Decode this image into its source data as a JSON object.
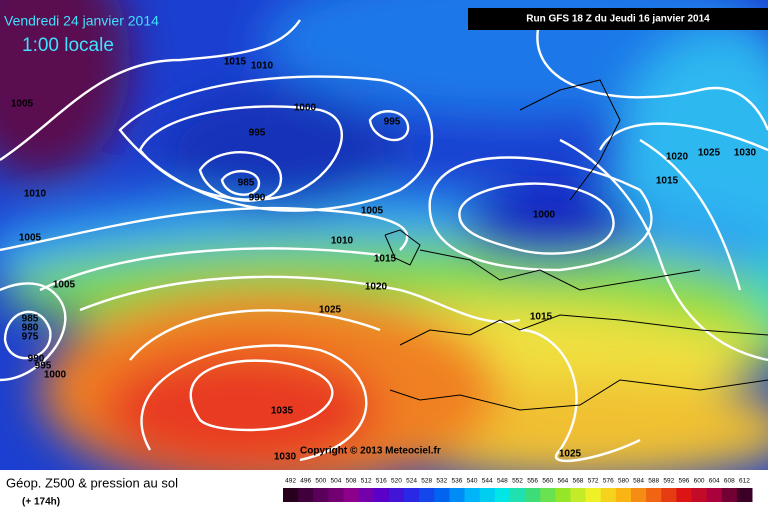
{
  "header": {
    "valid_date": "Vendredi 24 janvier 2014",
    "local_time": "1:00 locale",
    "run": "Run GFS 18 Z du Jeudi 16 janvier 2014"
  },
  "copyright": "Copyright © 2013 Meteociel.fr",
  "footer": {
    "title": "Géop. Z500 & pression au sol",
    "lead_time": "(+ 174h)"
  },
  "isobar_labels": [
    "1015",
    "1010",
    "1005",
    "1000",
    "995",
    "995",
    "985",
    "990",
    "1010",
    "1005",
    "1005",
    "1010",
    "1000",
    "1015",
    "1020",
    "1005",
    "1025",
    "1015",
    "985",
    "980",
    "975",
    "990",
    "995",
    "1000",
    "1035",
    "1030",
    "1025",
    "1020",
    "1025",
    "1030",
    "1015"
  ],
  "color_scale": [
    492,
    496,
    500,
    504,
    508,
    512,
    516,
    520,
    524,
    528,
    532,
    536,
    540,
    544,
    548,
    552,
    556,
    560,
    564,
    568,
    572,
    576,
    580,
    584,
    588,
    592,
    596,
    600,
    604,
    608,
    612
  ]
}
